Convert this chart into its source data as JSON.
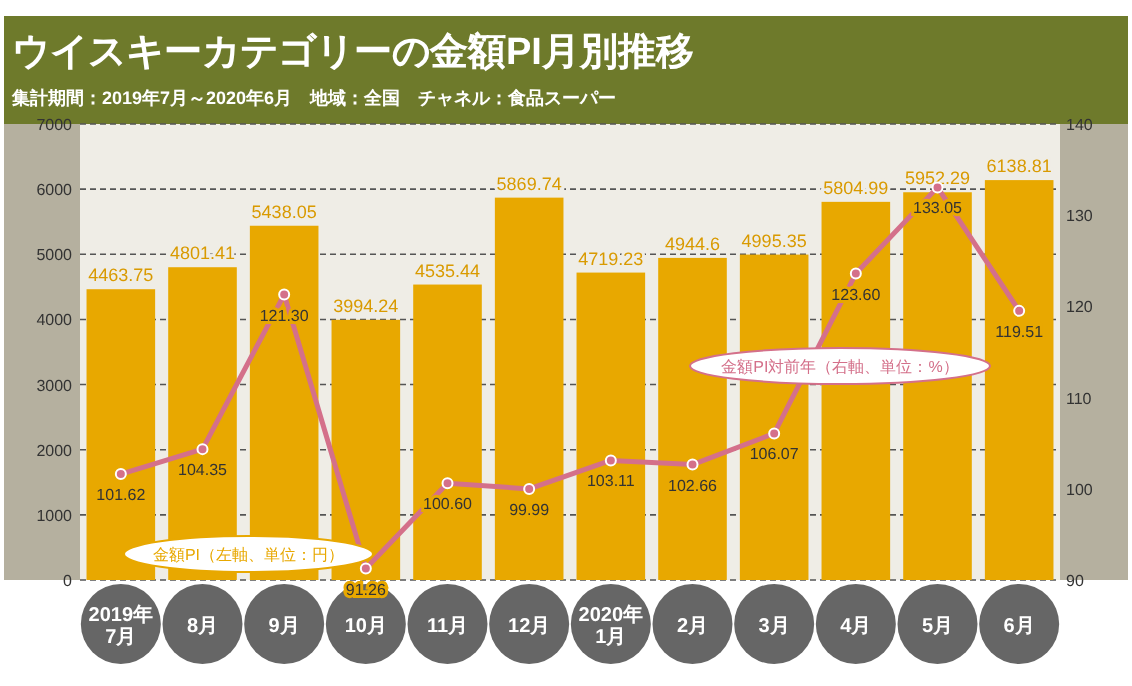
{
  "chart_data": {
    "type": "bar",
    "title": "ウイスキーカテゴリーの金額PI月別推移",
    "subtitle": "集計期間：2019年7月～2020年6月　地域：全国　チャネル：食品スーパー",
    "categories": [
      "2019年\n7月",
      "8月",
      "9月",
      "10月",
      "11月",
      "12月",
      "2020年\n1月",
      "2月",
      "3月",
      "4月",
      "5月",
      "6月"
    ],
    "series": [
      {
        "name": "金額PI（左軸、単位：円）",
        "color": "#e8a800",
        "values": [
          4463.75,
          4801.41,
          5438.05,
          3994.24,
          4535.44,
          5869.74,
          4719.23,
          4944.6,
          4995.35,
          5804.99,
          5952.29,
          6138.81
        ],
        "value_labels": [
          "4463.75",
          "4801.41",
          "5438.05",
          "3994.24",
          "4535.44",
          "5869.74",
          "4719.23",
          "4944.6",
          "4995.35",
          "5804.99",
          "5952.29",
          "6138.81"
        ]
      },
      {
        "name": "金額PI対前年（右軸、単位：%）",
        "type": "line",
        "axis": "y2",
        "color": "#d4708a",
        "values": [
          101.62,
          104.35,
          121.3,
          91.26,
          100.6,
          99.99,
          103.11,
          102.66,
          106.07,
          123.6,
          133.05,
          119.51
        ],
        "value_labels": [
          "101.62",
          "104.35",
          "121.30",
          "91.26",
          "100.60",
          "99.99",
          "103.11",
          "102.66",
          "106.07",
          "123.60",
          "133.05",
          "119.51"
        ]
      }
    ],
    "ylim": [
      0,
      7000
    ],
    "yticks": [
      0,
      1000,
      2000,
      3000,
      4000,
      5000,
      6000,
      7000
    ],
    "y2lim": [
      90,
      140
    ],
    "y2ticks": [
      90,
      100,
      110,
      120,
      130,
      140
    ],
    "grid": "y",
    "marker": "circle",
    "line_style": "solid"
  }
}
